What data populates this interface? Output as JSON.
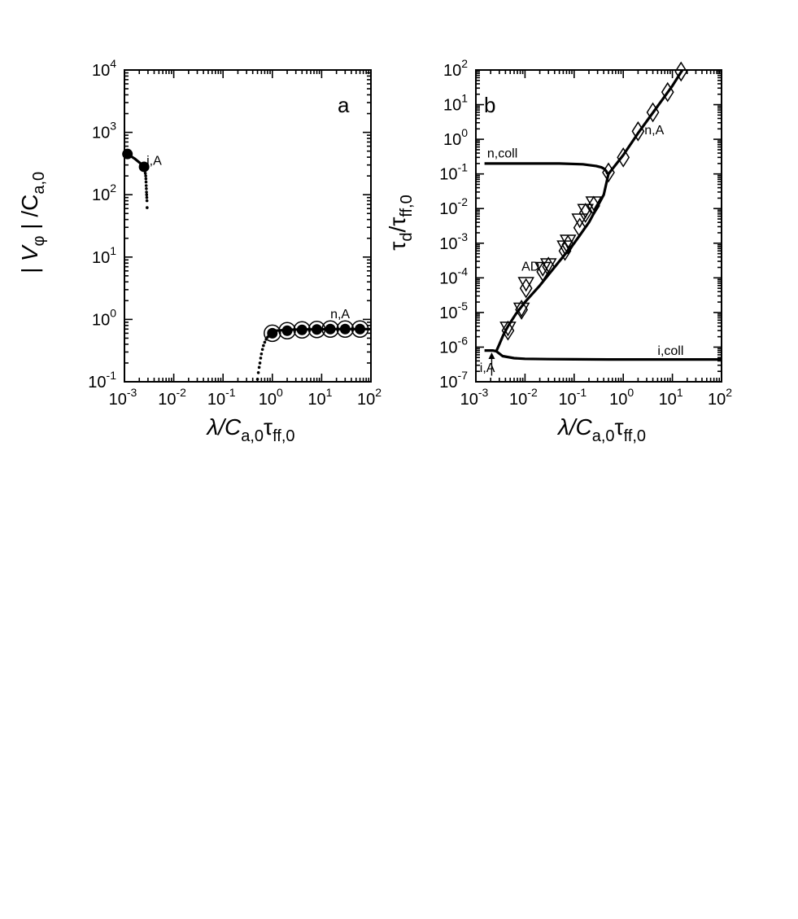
{
  "chart_data": [
    {
      "panel": "a",
      "type": "line",
      "xlabel": {
        "main": "λ/C",
        "sub1": "a,0",
        "mid": "τ",
        "sub2": "ff,0"
      },
      "ylabel": {
        "pre": "| V",
        "sub1": "φ",
        "mid": " | /C",
        "sub2": "a,0"
      },
      "xscale": "log",
      "yscale": "log",
      "xlim": [
        0.001,
        100
      ],
      "ylim": [
        0.1,
        10000
      ],
      "x_ticks": [
        {
          "base": "10",
          "exp": "-3"
        },
        {
          "base": "10",
          "exp": "-2"
        },
        {
          "base": "10",
          "exp": "-1"
        },
        {
          "base": "10",
          "exp": "0"
        },
        {
          "base": "10",
          "exp": "1"
        },
        {
          "base": "10",
          "exp": "2"
        }
      ],
      "y_ticks": [
        {
          "base": "10",
          "exp": "-1"
        },
        {
          "base": "10",
          "exp": "0"
        },
        {
          "base": "10",
          "exp": "1"
        },
        {
          "base": "10",
          "exp": "2"
        },
        {
          "base": "10",
          "exp": "3"
        },
        {
          "base": "10",
          "exp": "4"
        }
      ],
      "annotations": [
        {
          "text": "i,A",
          "x": 0.0028,
          "y": 300
        },
        {
          "text": "n,A",
          "x": 15,
          "y": 1.05
        }
      ],
      "series": [
        {
          "style": "curve",
          "x": [
            0.00115,
            0.0016,
            0.0022,
            0.0025,
            0.0027
          ],
          "y": [
            450,
            380,
            310,
            280,
            240
          ]
        },
        {
          "style": "curve",
          "x": [
            0.9,
            1.2,
            2,
            4,
            8,
            15,
            30,
            60,
            100
          ],
          "y": [
            0.6,
            0.66,
            0.68,
            0.69,
            0.69,
            0.7,
            0.7,
            0.7,
            0.7
          ]
        },
        {
          "style": "dots",
          "x": [
            0.0026,
            0.00265,
            0.0027,
            0.00272,
            0.00274,
            0.00276,
            0.00278,
            0.0028,
            0.00282,
            0.00284,
            0.00286,
            0.00288
          ],
          "y": [
            240,
            220,
            200,
            180,
            160,
            140,
            125,
            110,
            100,
            90,
            80,
            62
          ]
        },
        {
          "style": "dots",
          "x": [
            0.5,
            0.52,
            0.54,
            0.56,
            0.58,
            0.6,
            0.63,
            0.66,
            0.7,
            0.75,
            0.8,
            0.85,
            0.9
          ],
          "y": [
            0.11,
            0.14,
            0.17,
            0.2,
            0.24,
            0.28,
            0.33,
            0.38,
            0.43,
            0.48,
            0.52,
            0.56,
            0.6
          ]
        },
        {
          "style": "filled-circle",
          "x": [
            0.00115,
            0.0025,
            1,
            2,
            4,
            8,
            15,
            30,
            60
          ],
          "y": [
            450,
            280,
            0.6,
            0.66,
            0.68,
            0.69,
            0.7,
            0.7,
            0.7
          ]
        },
        {
          "style": "open-circle",
          "x": [
            1,
            2,
            4,
            8,
            15,
            30,
            60
          ],
          "y": [
            0.6,
            0.66,
            0.68,
            0.69,
            0.7,
            0.7,
            0.7
          ]
        }
      ]
    },
    {
      "panel": "b",
      "type": "line",
      "xlabel": {
        "main": "λ/C",
        "sub1": "a,0",
        "mid": "τ",
        "sub2": "ff,0"
      },
      "ylabel": {
        "pre": "τ",
        "sub1": "d",
        "mid": "/τ",
        "sub2": "ff,0"
      },
      "xscale": "log",
      "yscale": "log",
      "xlim": [
        0.001,
        100
      ],
      "ylim": [
        1e-07,
        100
      ],
      "x_ticks": [
        {
          "base": "10",
          "exp": "-3"
        },
        {
          "base": "10",
          "exp": "-2"
        },
        {
          "base": "10",
          "exp": "-1"
        },
        {
          "base": "10",
          "exp": "0"
        },
        {
          "base": "10",
          "exp": "1"
        },
        {
          "base": "10",
          "exp": "2"
        }
      ],
      "y_ticks": [
        {
          "base": "10",
          "exp": "-7"
        },
        {
          "base": "10",
          "exp": "-6"
        },
        {
          "base": "10",
          "exp": "-5"
        },
        {
          "base": "10",
          "exp": "-4"
        },
        {
          "base": "10",
          "exp": "-3"
        },
        {
          "base": "10",
          "exp": "-2"
        },
        {
          "base": "10",
          "exp": "-1"
        },
        {
          "base": "10",
          "exp": "0"
        },
        {
          "base": "10",
          "exp": "1"
        },
        {
          "base": "10",
          "exp": "2"
        }
      ],
      "annotations": [
        {
          "text": "n,coll",
          "x": 0.0017,
          "y": 0.3
        },
        {
          "text": "n,A",
          "x": 2.7,
          "y": 1.4
        },
        {
          "text": "AD",
          "x": 0.0085,
          "y": 0.00016
        },
        {
          "text": "i,coll",
          "x": 5,
          "y": 6e-07
        },
        {
          "text": "i,A",
          "x": 0.0012,
          "y": 1.9e-07
        }
      ],
      "arrow": {
        "x": 0.0021,
        "y_from": 1.5e-07,
        "y_to": 7e-07
      },
      "series": [
        {
          "style": "curve",
          "x": [
            0.0015,
            0.01,
            0.05,
            0.15,
            0.28,
            0.36,
            0.41,
            0.45,
            0.48
          ],
          "y": [
            0.2,
            0.2,
            0.2,
            0.19,
            0.17,
            0.155,
            0.14,
            0.12,
            0.1
          ]
        },
        {
          "style": "curve",
          "x": [
            0.0015,
            0.0022,
            0.0026
          ],
          "y": [
            8e-07,
            8e-07,
            7.6e-07
          ]
        },
        {
          "style": "curve",
          "x": [
            0.0026,
            0.0035,
            0.006,
            0.01,
            0.03,
            0.1,
            0.5,
            2,
            10,
            30,
            100
          ],
          "y": [
            7.6e-07,
            5.5e-07,
            4.8e-07,
            4.6e-07,
            4.5e-07,
            4.45e-07,
            4.4e-07,
            4.4e-07,
            4.4e-07,
            4.4e-07,
            4.4e-07
          ]
        },
        {
          "style": "curve",
          "x": [
            0.0026,
            0.003,
            0.0036,
            0.0045,
            0.0065,
            0.01,
            0.02,
            0.05,
            0.1,
            0.2,
            0.4,
            0.5,
            1,
            2,
            5,
            10,
            16
          ],
          "y": [
            7.6e-07,
            1.2e-06,
            2.2e-06,
            4e-06,
            9e-06,
            2e-05,
            6e-05,
            0.0003,
            0.001,
            0.004,
            0.025,
            0.1,
            0.35,
            1.5,
            9,
            35,
            100
          ]
        },
        {
          "style": "down-triangle",
          "x": [
            0.0045,
            0.0085,
            0.0105,
            0.023,
            0.03,
            0.065,
            0.075,
            0.13,
            0.17,
            0.25
          ],
          "y": [
            3.4e-06,
            1.2e-05,
            6.6e-05,
            0.00018,
            0.00023,
            0.00075,
            0.0011,
            0.0045,
            0.0085,
            0.014
          ]
        },
        {
          "style": "diamond",
          "x": [
            0.0045,
            0.0085,
            0.0105,
            0.023,
            0.03,
            0.065,
            0.075,
            0.13,
            0.17,
            0.25,
            0.5,
            1,
            2,
            4,
            8,
            15
          ],
          "y": [
            3e-06,
            1.2e-05,
            5e-05,
            0.00015,
            0.00021,
            0.0006,
            0.0009,
            0.0028,
            0.0075,
            0.012,
            0.11,
            0.3,
            1.7,
            6,
            23,
            90
          ]
        }
      ]
    }
  ]
}
